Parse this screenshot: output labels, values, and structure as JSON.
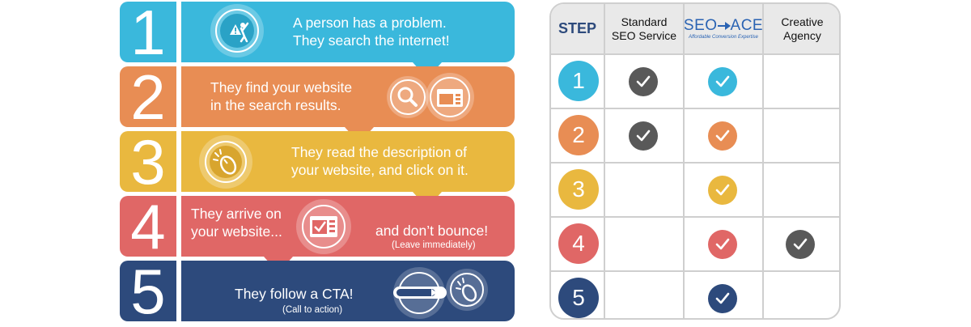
{
  "colors": {
    "step1": "#3ab8dc",
    "step2": "#e88d54",
    "step3": "#e9b83f",
    "step4": "#e06766",
    "step5": "#2d4a7c",
    "gray_check": "#595959",
    "seoace_blue": "#2a63b3"
  },
  "infographic": {
    "steps": [
      {
        "number": "1",
        "text_line1": "A person has a problem.",
        "text_line2": "They search the internet!",
        "icon": "frustrated-person-icon"
      },
      {
        "number": "2",
        "text_line1": "They find your website",
        "text_line2": "in the search results.",
        "icon": "search-results-icon"
      },
      {
        "number": "3",
        "text_line1": "They read the description of",
        "text_line2": "your website, and click on it.",
        "icon": "mouse-click-icon"
      },
      {
        "number": "4",
        "text_line1": "They arrive on",
        "text_line2": "your website...",
        "text_right": "and don’t bounce!",
        "sub_right": "(Leave immediately)",
        "icon": "website-checklist-icon"
      },
      {
        "number": "5",
        "text_line1": "They follow a CTA!",
        "sub": "(Call to action)",
        "icon": "cta-button-icon"
      }
    ]
  },
  "table": {
    "header": {
      "step": "STEP",
      "col1_line1": "Standard",
      "col1_line2": "SEO Service",
      "col2_logo_text_left": "SEO",
      "col2_logo_text_right": "ACE",
      "col2_logo_tagline": "Affordable Conversion Expertise",
      "col3_line1": "Creative",
      "col3_line2": "Agency"
    },
    "rows": [
      {
        "step": "1",
        "standard": true,
        "seoace": true,
        "agency": false
      },
      {
        "step": "2",
        "standard": true,
        "seoace": true,
        "agency": false
      },
      {
        "step": "3",
        "standard": false,
        "seoace": true,
        "agency": false
      },
      {
        "step": "4",
        "standard": false,
        "seoace": true,
        "agency": true
      },
      {
        "step": "5",
        "standard": false,
        "seoace": true,
        "agency": false
      }
    ]
  }
}
